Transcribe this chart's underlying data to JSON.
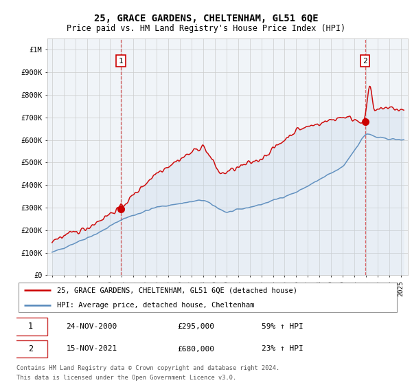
{
  "title": "25, GRACE GARDENS, CHELTENHAM, GL51 6QE",
  "subtitle": "Price paid vs. HM Land Registry's House Price Index (HPI)",
  "legend_line1": "25, GRACE GARDENS, CHELTENHAM, GL51 6QE (detached house)",
  "legend_line2": "HPI: Average price, detached house, Cheltenham",
  "footer1": "Contains HM Land Registry data © Crown copyright and database right 2024.",
  "footer2": "This data is licensed under the Open Government Licence v3.0.",
  "annotation1_date": "24-NOV-2000",
  "annotation1_price": "£295,000",
  "annotation1_hpi": "59% ↑ HPI",
  "annotation2_date": "15-NOV-2021",
  "annotation2_price": "£680,000",
  "annotation2_hpi": "23% ↑ HPI",
  "red_color": "#cc0000",
  "blue_color": "#5588bb",
  "fill_color": "#c8daea",
  "background_color": "#ffffff",
  "grid_color": "#cccccc",
  "ylim": [
    0,
    1050000
  ],
  "yticks": [
    0,
    100000,
    200000,
    300000,
    400000,
    500000,
    600000,
    700000,
    800000,
    900000,
    1000000
  ],
  "ytick_labels": [
    "£0",
    "£100K",
    "£200K",
    "£300K",
    "£400K",
    "£500K",
    "£600K",
    "£700K",
    "£800K",
    "£900K",
    "£1M"
  ]
}
